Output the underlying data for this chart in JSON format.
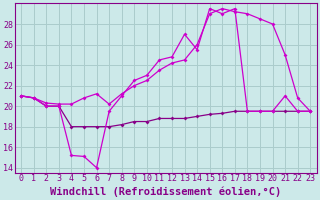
{
  "title": "",
  "xlabel": "Windchill (Refroidissement éolien,°C)",
  "background_color": "#cce9e9",
  "plot_bg_color": "#cce9e9",
  "grid_color": "#aacccc",
  "line_color1": "#cc00cc",
  "line_color2": "#880088",
  "ylim": [
    13.5,
    30.0
  ],
  "xlim": [
    -0.5,
    23.5
  ],
  "yticks": [
    14,
    16,
    18,
    20,
    22,
    24,
    26,
    28
  ],
  "xticks": [
    0,
    1,
    2,
    3,
    4,
    5,
    6,
    7,
    8,
    9,
    10,
    11,
    12,
    13,
    14,
    15,
    16,
    17,
    18,
    19,
    20,
    21,
    22,
    23
  ],
  "series1_x": [
    0,
    1,
    2,
    3,
    4,
    5,
    6,
    7,
    8,
    9,
    10,
    11,
    12,
    13,
    14,
    15,
    16,
    17,
    18,
    19,
    20,
    21,
    22,
    23
  ],
  "series1_y": [
    21.0,
    20.8,
    20.0,
    20.0,
    15.2,
    15.1,
    14.0,
    19.5,
    21.0,
    22.5,
    23.0,
    24.5,
    24.8,
    27.0,
    25.5,
    29.5,
    29.0,
    29.5,
    19.5,
    19.5,
    19.5,
    21.0,
    19.5,
    19.5
  ],
  "series2_x": [
    0,
    1,
    2,
    3,
    4,
    5,
    6,
    7,
    8,
    9,
    10,
    11,
    12,
    13,
    14,
    15,
    16,
    17,
    18,
    19,
    20,
    21,
    22,
    23
  ],
  "series2_y": [
    21.0,
    20.8,
    20.3,
    20.2,
    20.2,
    20.8,
    21.2,
    20.2,
    21.2,
    22.0,
    22.5,
    23.5,
    24.2,
    24.5,
    26.0,
    29.0,
    29.5,
    29.2,
    29.0,
    28.5,
    28.0,
    25.0,
    20.8,
    19.5
  ],
  "series3_x": [
    0,
    1,
    2,
    3,
    4,
    5,
    6,
    7,
    8,
    9,
    10,
    11,
    12,
    13,
    14,
    15,
    16,
    17,
    18,
    19,
    20,
    21,
    22,
    23
  ],
  "series3_y": [
    21.0,
    20.8,
    20.0,
    20.0,
    18.0,
    18.0,
    18.0,
    18.0,
    18.2,
    18.5,
    18.5,
    18.8,
    18.8,
    18.8,
    19.0,
    19.2,
    19.3,
    19.5,
    19.5,
    19.5,
    19.5,
    19.5,
    19.5,
    19.5
  ],
  "xlabel_fontsize": 7.5,
  "tick_fontsize": 6.0,
  "marker": "D",
  "marker_size": 2.0,
  "linewidth": 0.9
}
